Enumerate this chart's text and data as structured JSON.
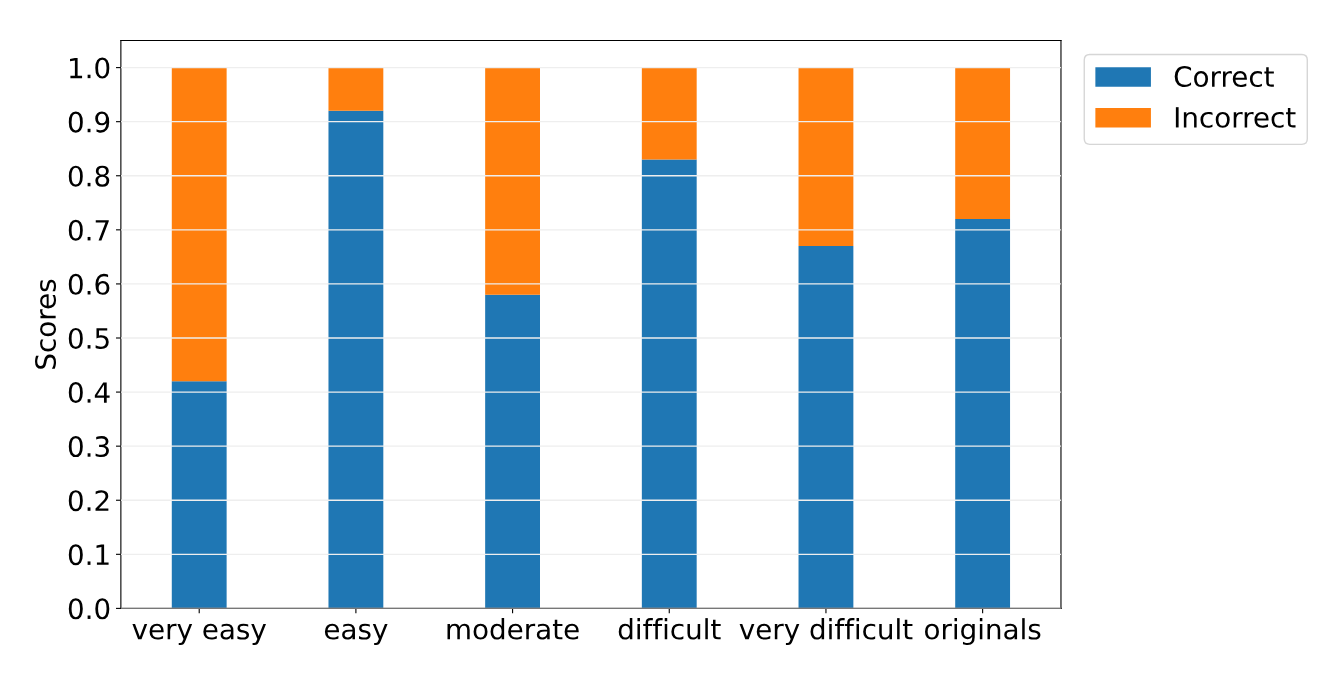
{
  "chart_data": {
    "type": "bar",
    "stacked": true,
    "ylabel": "Scores",
    "categories": [
      "very easy",
      "easy",
      "moderate",
      "difficult",
      "very difficult",
      "originals"
    ],
    "series": [
      {
        "name": "Correct",
        "color": "#1f77b4",
        "values": [
          0.42,
          0.92,
          0.58,
          0.83,
          0.67,
          0.72
        ]
      },
      {
        "name": "Incorrect",
        "color": "#ff7f0e",
        "values": [
          0.58,
          0.08,
          0.42,
          0.17,
          0.33,
          0.28
        ]
      }
    ],
    "ylim": [
      0,
      1.05
    ],
    "yticks": [
      {
        "value": 0,
        "label": "0.0"
      },
      0.1,
      0.2,
      0.3,
      0.4,
      0.5,
      0.6,
      0.7,
      0.8,
      0.9,
      {
        "value": 1,
        "label": "1.0"
      }
    ],
    "grid": "y",
    "legend": "top right"
  }
}
